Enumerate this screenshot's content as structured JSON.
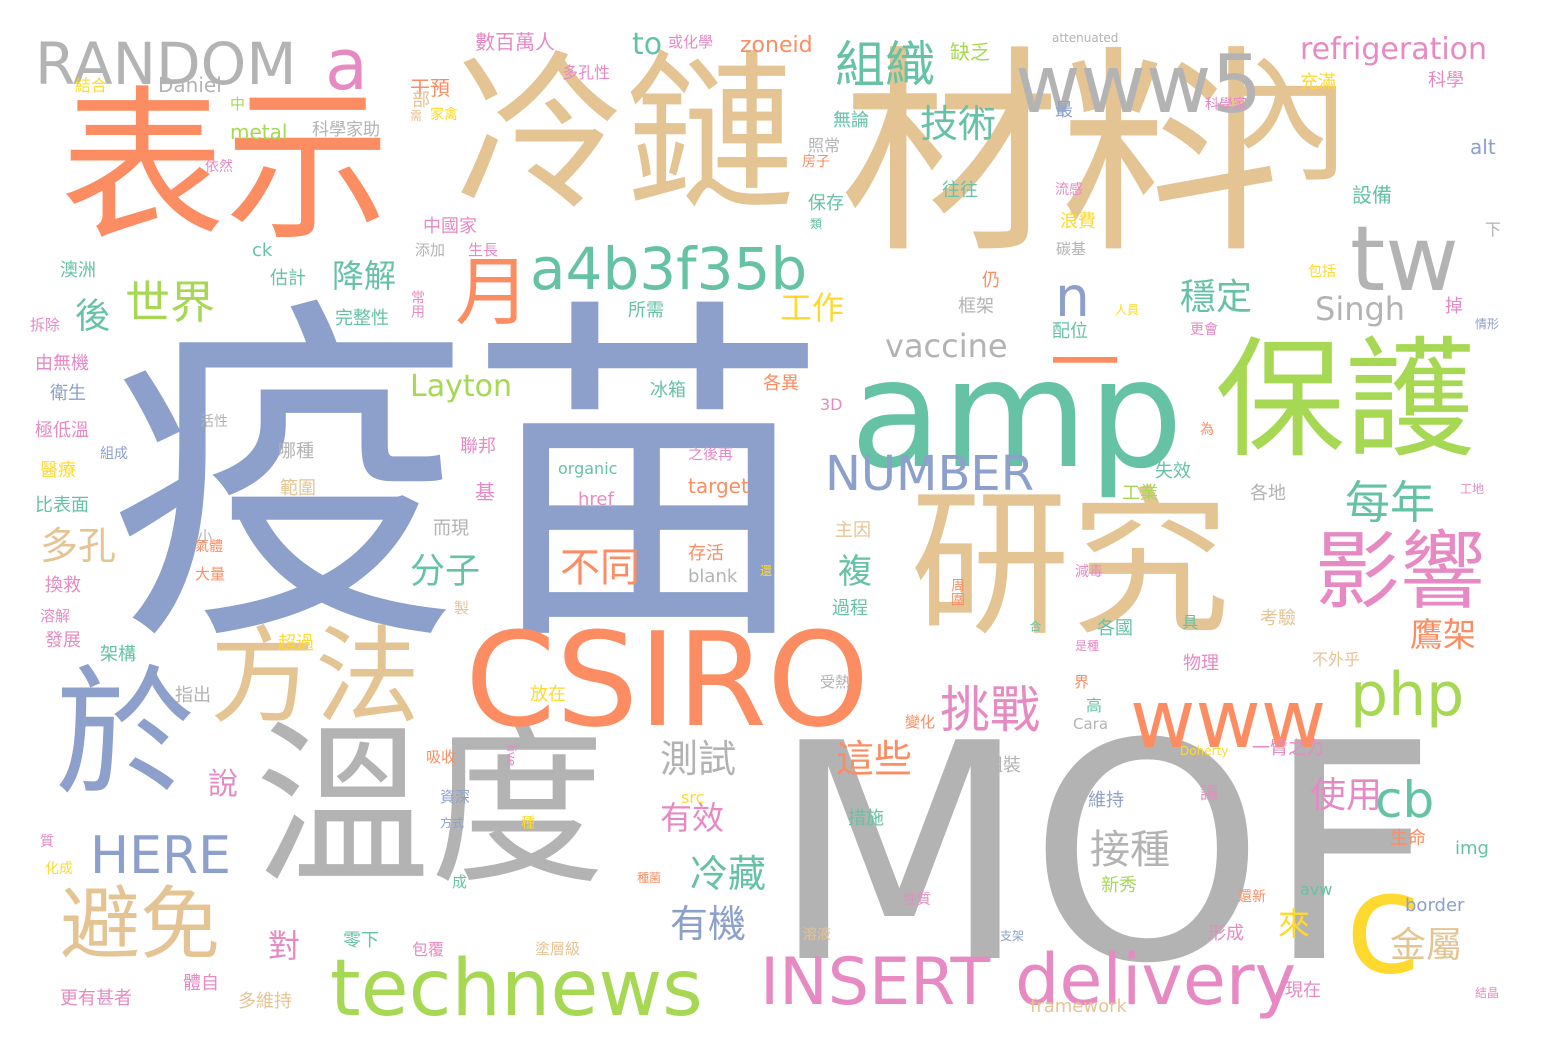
{
  "palette": {
    "coral": "#fc8d62",
    "green": "#66c2a5",
    "blue": "#8da0cb",
    "pink": "#e78ac3",
    "lime": "#a6d854",
    "yellow": "#ffd92f",
    "tan": "#e5c494",
    "gray": "#b3b3b3"
  },
  "words": [
    {
      "text": "疫苗",
      "color": "blue"
    },
    {
      "text": "MOF",
      "color": "gray"
    },
    {
      "text": "材料",
      "color": "tan"
    },
    {
      "text": "冷鏈",
      "color": "tan"
    },
    {
      "text": "表示",
      "color": "coral"
    },
    {
      "text": "溫度",
      "color": "gray"
    },
    {
      "text": "研究",
      "color": "tan"
    },
    {
      "text": "amp",
      "color": "green"
    },
    {
      "text": "保護",
      "color": "lime"
    },
    {
      "text": "CSIRO",
      "color": "coral"
    },
    {
      "text": "內",
      "color": "tan"
    },
    {
      "text": "一",
      "color": "coral"
    },
    {
      "text": "於",
      "color": "blue"
    },
    {
      "text": "方法",
      "color": "tan"
    },
    {
      "text": "technews",
      "color": "lime"
    },
    {
      "text": "www5",
      "color": "gray"
    },
    {
      "text": "c",
      "color": "yellow"
    },
    {
      "text": "www",
      "color": "coral"
    },
    {
      "text": "delivery",
      "color": "pink"
    },
    {
      "text": "INSERT",
      "color": "pink"
    },
    {
      "text": "避免",
      "color": "tan"
    },
    {
      "text": "影響",
      "color": "pink"
    },
    {
      "text": "a4b3f35b",
      "color": "green"
    },
    {
      "text": "RANDOM",
      "color": "gray"
    },
    {
      "text": "tw",
      "color": "gray"
    },
    {
      "text": "a",
      "color": "pink"
    },
    {
      "text": "月",
      "color": "coral"
    },
    {
      "text": "組織",
      "color": "green"
    },
    {
      "text": "NUMBER",
      "color": "blue"
    },
    {
      "text": "php",
      "color": "lime"
    },
    {
      "text": "HERE",
      "color": "blue"
    },
    {
      "text": "cb",
      "color": "green"
    },
    {
      "text": "挑戰",
      "color": "pink"
    },
    {
      "text": "每年",
      "color": "green"
    },
    {
      "text": "世界",
      "color": "lime"
    },
    {
      "text": "n",
      "color": "blue"
    },
    {
      "text": "接種",
      "color": "gray"
    },
    {
      "text": "refrigeration",
      "color": "pink"
    },
    {
      "text": "vaccine",
      "color": "gray"
    },
    {
      "text": "Layton",
      "color": "lime"
    },
    {
      "text": "不同",
      "color": "coral"
    },
    {
      "text": "技術",
      "color": "green"
    },
    {
      "text": "降解",
      "color": "green"
    },
    {
      "text": "工作",
      "color": "yellow"
    },
    {
      "text": "穩定",
      "color": "green"
    },
    {
      "text": "Singh",
      "color": "gray"
    },
    {
      "text": "這些",
      "color": "coral"
    },
    {
      "text": "測試",
      "color": "gray"
    },
    {
      "text": "有效",
      "color": "pink"
    },
    {
      "text": "冷藏",
      "color": "green"
    },
    {
      "text": "使用",
      "color": "pink"
    },
    {
      "text": "金屬",
      "color": "tan"
    },
    {
      "text": "有機",
      "color": "blue"
    },
    {
      "text": "多孔",
      "color": "tan"
    },
    {
      "text": "分子",
      "color": "green"
    },
    {
      "text": "後",
      "color": "green"
    },
    {
      "text": "說",
      "color": "pink"
    },
    {
      "text": "對",
      "color": "pink"
    },
    {
      "text": "來",
      "color": "yellow"
    },
    {
      "text": "鷹架",
      "color": "coral"
    },
    {
      "text": "複",
      "color": "green"
    },
    {
      "text": "to",
      "color": "green"
    },
    {
      "text": "metal",
      "color": "lime"
    },
    {
      "text": "zoneid",
      "color": "coral"
    },
    {
      "text": "數百萬人",
      "color": "pink"
    },
    {
      "text": "或化學",
      "color": "pink"
    },
    {
      "text": "干預",
      "color": "coral"
    },
    {
      "text": "缺乏",
      "color": "lime"
    },
    {
      "text": "Daniel",
      "color": "gray"
    },
    {
      "text": "結合",
      "color": "yellow"
    },
    {
      "text": "多孔性",
      "color": "pink"
    },
    {
      "text": "充滿",
      "color": "yellow"
    },
    {
      "text": "科學",
      "color": "pink"
    },
    {
      "text": "attenuated",
      "color": "gray"
    },
    {
      "text": "科學家助",
      "color": "gray"
    },
    {
      "text": "無論",
      "color": "green"
    },
    {
      "text": "最",
      "color": "blue"
    },
    {
      "text": "alt",
      "color": "blue"
    },
    {
      "text": "設備",
      "color": "green"
    },
    {
      "text": "往往",
      "color": "green"
    },
    {
      "text": "保存",
      "color": "green"
    },
    {
      "text": "浪費",
      "color": "yellow"
    },
    {
      "text": "中國家",
      "color": "pink"
    },
    {
      "text": "添加",
      "color": "gray"
    },
    {
      "text": "生長",
      "color": "pink"
    },
    {
      "text": "碳基",
      "color": "gray"
    },
    {
      "text": "ck",
      "color": "green"
    },
    {
      "text": "估計",
      "color": "green"
    },
    {
      "text": "澳洲",
      "color": "green"
    },
    {
      "text": "仍",
      "color": "coral"
    },
    {
      "text": "完整性",
      "color": "green"
    },
    {
      "text": "框架",
      "color": "gray"
    },
    {
      "text": "所需",
      "color": "green"
    },
    {
      "text": "配位",
      "color": "green"
    },
    {
      "text": "掉",
      "color": "pink"
    },
    {
      "text": "由無機",
      "color": "pink"
    },
    {
      "text": "衛生",
      "color": "blue"
    },
    {
      "text": "冰箱",
      "color": "green"
    },
    {
      "text": "各異",
      "color": "coral"
    },
    {
      "text": "3D",
      "color": "pink"
    },
    {
      "text": "極低溫",
      "color": "pink"
    },
    {
      "text": "哪種",
      "color": "gray"
    },
    {
      "text": "聯邦",
      "color": "pink"
    },
    {
      "text": "organic",
      "color": "green"
    },
    {
      "text": "之後再",
      "color": "pink"
    },
    {
      "text": "失效",
      "color": "green"
    },
    {
      "text": "醫療",
      "color": "yellow"
    },
    {
      "text": "範圍",
      "color": "tan"
    },
    {
      "text": "href",
      "color": "pink"
    },
    {
      "text": "target",
      "color": "coral"
    },
    {
      "text": "工業",
      "color": "lime"
    },
    {
      "text": "各地",
      "color": "gray"
    },
    {
      "text": "比表面",
      "color": "green"
    },
    {
      "text": "而現",
      "color": "gray"
    },
    {
      "text": "主因",
      "color": "tan"
    },
    {
      "text": "存活",
      "color": "coral"
    },
    {
      "text": "換救",
      "color": "pink"
    },
    {
      "text": "blank",
      "color": "gray"
    },
    {
      "text": "大量",
      "color": "coral"
    },
    {
      "text": "溶解",
      "color": "pink"
    },
    {
      "text": "過程",
      "color": "green"
    },
    {
      "text": "考驗",
      "color": "tan"
    },
    {
      "text": "發展",
      "color": "pink"
    },
    {
      "text": "超過",
      "color": "yellow"
    },
    {
      "text": "架構",
      "color": "green"
    },
    {
      "text": "各國",
      "color": "green"
    },
    {
      "text": "不外乎",
      "color": "tan"
    },
    {
      "text": "物理",
      "color": "pink"
    },
    {
      "text": "指出",
      "color": "gray"
    },
    {
      "text": "放在",
      "color": "yellow"
    },
    {
      "text": "高",
      "color": "green"
    },
    {
      "text": "Cara",
      "color": "gray"
    },
    {
      "text": "一臂之力",
      "color": "pink"
    },
    {
      "text": "吸收",
      "color": "coral"
    },
    {
      "text": "資深",
      "color": "blue"
    },
    {
      "text": "組裝",
      "color": "gray"
    },
    {
      "text": "src",
      "color": "yellow"
    },
    {
      "text": "維持",
      "color": "blue"
    },
    {
      "text": "措施",
      "color": "green"
    },
    {
      "text": "讓",
      "color": "pink"
    },
    {
      "text": "生命",
      "color": "coral"
    },
    {
      "text": "img",
      "color": "green"
    },
    {
      "text": "質",
      "color": "pink"
    },
    {
      "text": "新秀",
      "color": "lime"
    },
    {
      "text": "avw",
      "color": "green"
    },
    {
      "text": "border",
      "color": "blue"
    },
    {
      "text": "形成",
      "color": "pink"
    },
    {
      "text": "零下",
      "color": "green"
    },
    {
      "text": "包覆",
      "color": "pink"
    },
    {
      "text": "塗層級",
      "color": "tan"
    },
    {
      "text": "現在",
      "color": "pink"
    },
    {
      "text": "更有甚者",
      "color": "pink"
    },
    {
      "text": "體自",
      "color": "pink"
    },
    {
      "text": "多維持",
      "color": "tan"
    },
    {
      "text": "framework",
      "color": "tan"
    },
    {
      "text": "部",
      "color": "tan"
    },
    {
      "text": "家禽",
      "color": "yellow"
    },
    {
      "text": "中",
      "color": "lime"
    },
    {
      "text": "照常",
      "color": "gray"
    },
    {
      "text": "房子",
      "color": "coral"
    },
    {
      "text": "科學家",
      "color": "pink"
    },
    {
      "text": "依然",
      "color": "pink"
    },
    {
      "text": "類",
      "color": "green"
    },
    {
      "text": "下",
      "color": "gray"
    },
    {
      "text": "包括",
      "color": "yellow"
    },
    {
      "text": "常用",
      "color": "pink"
    },
    {
      "text": "拆除",
      "color": "pink"
    },
    {
      "text": "人員",
      "color": "yellow"
    },
    {
      "text": "更會",
      "color": "pink"
    },
    {
      "text": "情形",
      "color": "blue"
    },
    {
      "text": "活性",
      "color": "gray"
    },
    {
      "text": "組成",
      "color": "blue"
    },
    {
      "text": "為",
      "color": "coral"
    },
    {
      "text": "基",
      "color": "pink"
    },
    {
      "text": "氣體",
      "color": "coral"
    },
    {
      "text": "小",
      "color": "gray"
    },
    {
      "text": "周圍",
      "color": "coral"
    },
    {
      "text": "減毒",
      "color": "pink"
    },
    {
      "text": "工地",
      "color": "pink"
    },
    {
      "text": "是種",
      "color": "pink"
    },
    {
      "text": "受熱",
      "color": "gray"
    },
    {
      "text": "變化",
      "color": "coral"
    },
    {
      "text": "界",
      "color": "coral"
    },
    {
      "text": "具",
      "color": "green"
    },
    {
      "text": "合",
      "color": "green"
    },
    {
      "text": "方式",
      "color": "blue"
    },
    {
      "text": "種",
      "color": "yellow"
    },
    {
      "text": "成",
      "color": "green"
    },
    {
      "text": "種菌",
      "color": "coral"
    },
    {
      "text": "性質",
      "color": "pink"
    },
    {
      "text": "溶液",
      "color": "tan"
    },
    {
      "text": "支架",
      "color": "blue"
    },
    {
      "text": "結晶",
      "color": "pink"
    },
    {
      "text": "化成",
      "color": "yellow"
    },
    {
      "text": "還新",
      "color": "coral"
    },
    {
      "text": "Doherty",
      "color": "yellow"
    },
    {
      "text": "live",
      "color": "pink"
    },
    {
      "text": "製",
      "color": "tan"
    },
    {
      "text": "還",
      "color": "yellow"
    },
    {
      "text": "需",
      "color": "tan"
    },
    {
      "text": "流感",
      "color": "pink"
    }
  ]
}
